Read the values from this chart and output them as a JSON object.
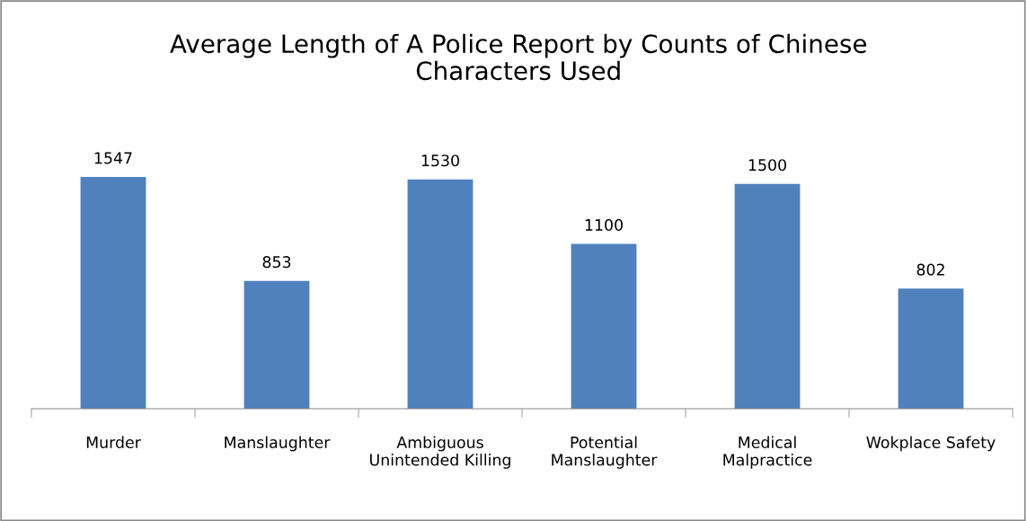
{
  "chart_data": {
    "type": "bar",
    "title": "Average Length of A Police Report by Counts of Chinese Characters Used",
    "categories": [
      "Murder",
      "Manslaughter",
      "Ambiguous Unintended Killing",
      "Potential Manslaughter",
      "Medical Malpractice",
      "Wokplace Safety"
    ],
    "values": [
      1547,
      853,
      1530,
      1100,
      1500,
      802
    ],
    "color": "#4f81bd",
    "data_labels": true,
    "grid": false,
    "legend": false
  }
}
